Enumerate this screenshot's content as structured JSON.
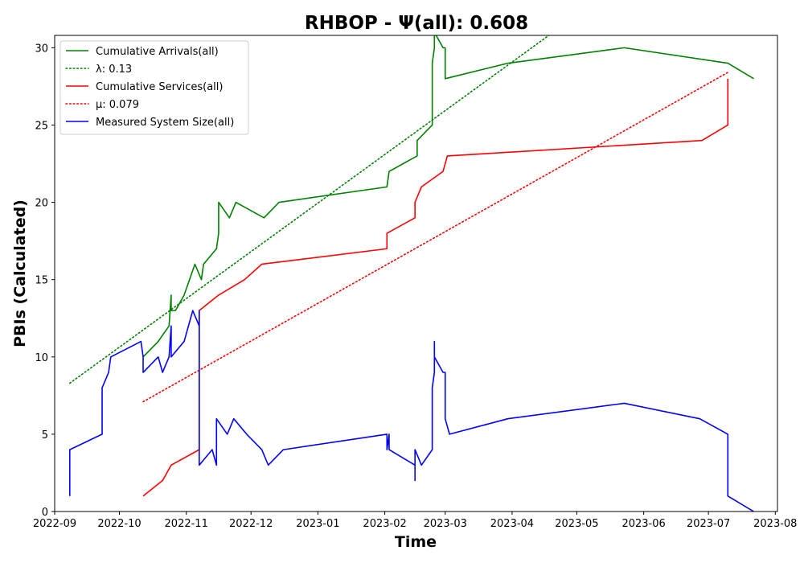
{
  "chart_data": {
    "type": "line",
    "title": "RHBOP -  Ψ(all): 0.608",
    "xlabel": "Time",
    "ylabel": "PBIs (Calculated)",
    "xlim": [
      "2022-09-01",
      "2023-08-02"
    ],
    "ylim": [
      0,
      30.8
    ],
    "x_ticks": [
      "2022-09",
      "2022-10",
      "2022-11",
      "2022-12",
      "2023-01",
      "2023-02",
      "2023-03",
      "2023-04",
      "2023-05",
      "2023-06",
      "2023-07",
      "2023-08"
    ],
    "y_ticks": [
      0,
      5,
      10,
      15,
      20,
      25,
      30
    ],
    "grid": false,
    "legend_position": "top-left",
    "series": [
      {
        "name": "Cumulative Arrivals(all)",
        "color": "#008000",
        "style": "solid",
        "points": [
          [
            "2022-10-12",
            10
          ],
          [
            "2022-10-19",
            11
          ],
          [
            "2022-10-24",
            12
          ],
          [
            "2022-10-25",
            14
          ],
          [
            "2022-10-25",
            13
          ],
          [
            "2022-10-27",
            13
          ],
          [
            "2022-10-31",
            14
          ],
          [
            "2022-11-05",
            16
          ],
          [
            "2022-11-08",
            15
          ],
          [
            "2022-11-09",
            16
          ],
          [
            "2022-11-15",
            17
          ],
          [
            "2022-11-16",
            18
          ],
          [
            "2022-11-16",
            20
          ],
          [
            "2022-11-21",
            19
          ],
          [
            "2022-11-24",
            20
          ],
          [
            "2022-12-07",
            19
          ],
          [
            "2022-12-14",
            20
          ],
          [
            "2023-02-02",
            21
          ],
          [
            "2023-02-03",
            22
          ],
          [
            "2023-02-16",
            23
          ],
          [
            "2023-02-16",
            24
          ],
          [
            "2023-02-23",
            25
          ],
          [
            "2023-02-23",
            29
          ],
          [
            "2023-02-24",
            30
          ],
          [
            "2023-02-24",
            31
          ],
          [
            "2023-02-28",
            30
          ],
          [
            "2023-03-01",
            30
          ],
          [
            "2023-03-01",
            28
          ],
          [
            "2023-03-30",
            29
          ],
          [
            "2023-05-23",
            30
          ],
          [
            "2023-07-10",
            29
          ],
          [
            "2023-07-22",
            28
          ]
        ]
      },
      {
        "name": "λ: 0.13",
        "color": "#008000",
        "style": "dotted",
        "points": [
          [
            "2022-09-08",
            8.3
          ],
          [
            "2023-04-20",
            31.0
          ]
        ]
      },
      {
        "name": "Cumulative Services(all)",
        "color": "#ff0000",
        "style": "solid",
        "points": [
          [
            "2022-10-12",
            1
          ],
          [
            "2022-10-21",
            2
          ],
          [
            "2022-10-25",
            3
          ],
          [
            "2022-11-07",
            4
          ],
          [
            "2022-11-07",
            13
          ],
          [
            "2022-11-16",
            14
          ],
          [
            "2022-11-28",
            15
          ],
          [
            "2022-12-06",
            16
          ],
          [
            "2023-02-02",
            17
          ],
          [
            "2023-02-02",
            18
          ],
          [
            "2023-02-15",
            19
          ],
          [
            "2023-02-15",
            20
          ],
          [
            "2023-02-18",
            21
          ],
          [
            "2023-02-28",
            22
          ],
          [
            "2023-03-02",
            23
          ],
          [
            "2023-06-28",
            24
          ],
          [
            "2023-07-10",
            25
          ],
          [
            "2023-07-10",
            28
          ]
        ]
      },
      {
        "name": "μ: 0.079",
        "color": "#ff0000",
        "style": "dotted",
        "points": [
          [
            "2022-10-12",
            7.1
          ],
          [
            "2023-07-10",
            28.4
          ]
        ]
      },
      {
        "name": "Measured System Size(all)",
        "color": "#0000ff",
        "style": "solid",
        "points": [
          [
            "2022-09-08",
            1
          ],
          [
            "2022-09-08",
            4
          ],
          [
            "2022-09-23",
            5
          ],
          [
            "2022-09-23",
            8
          ],
          [
            "2022-09-26",
            9
          ],
          [
            "2022-09-27",
            10
          ],
          [
            "2022-10-11",
            11
          ],
          [
            "2022-10-12",
            10
          ],
          [
            "2022-10-12",
            9
          ],
          [
            "2022-10-19",
            10
          ],
          [
            "2022-10-21",
            9
          ],
          [
            "2022-10-24",
            10
          ],
          [
            "2022-10-25",
            12
          ],
          [
            "2022-10-25",
            10
          ],
          [
            "2022-10-31",
            11
          ],
          [
            "2022-11-04",
            13
          ],
          [
            "2022-11-07",
            12
          ],
          [
            "2022-11-07",
            13
          ],
          [
            "2022-11-07",
            3
          ],
          [
            "2022-11-13",
            4
          ],
          [
            "2022-11-15",
            3
          ],
          [
            "2022-11-15",
            6
          ],
          [
            "2022-11-20",
            5
          ],
          [
            "2022-11-23",
            6
          ],
          [
            "2022-11-29",
            5
          ],
          [
            "2022-12-06",
            4
          ],
          [
            "2022-12-09",
            3
          ],
          [
            "2022-12-16",
            4
          ],
          [
            "2023-02-02",
            5
          ],
          [
            "2023-02-02",
            4
          ],
          [
            "2023-02-03",
            5
          ],
          [
            "2023-02-03",
            4
          ],
          [
            "2023-02-15",
            3
          ],
          [
            "2023-02-15",
            2
          ],
          [
            "2023-02-15",
            4
          ],
          [
            "2023-02-18",
            3
          ],
          [
            "2023-02-23",
            4
          ],
          [
            "2023-02-23",
            8
          ],
          [
            "2023-02-24",
            9
          ],
          [
            "2023-02-24",
            11
          ],
          [
            "2023-02-24",
            10
          ],
          [
            "2023-02-28",
            9
          ],
          [
            "2023-03-01",
            9
          ],
          [
            "2023-03-01",
            6
          ],
          [
            "2023-03-03",
            5
          ],
          [
            "2023-03-30",
            6
          ],
          [
            "2023-05-23",
            7
          ],
          [
            "2023-06-27",
            6
          ],
          [
            "2023-07-10",
            5
          ],
          [
            "2023-07-10",
            1
          ],
          [
            "2023-07-22",
            0
          ]
        ]
      }
    ]
  }
}
